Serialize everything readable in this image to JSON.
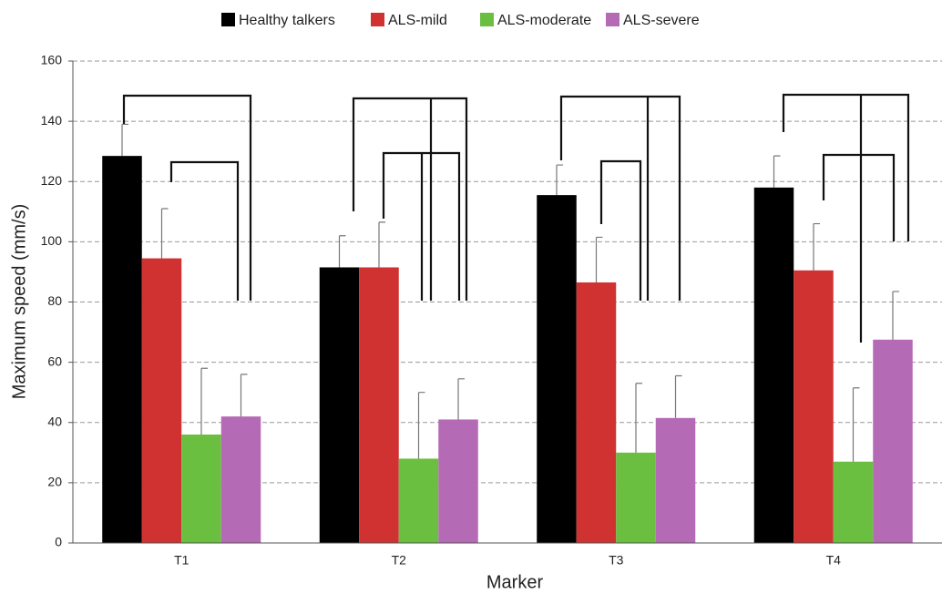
{
  "chart_data": {
    "type": "bar",
    "x_label": "Marker",
    "y_label": "Maximum speed (mm/s)",
    "categories": [
      "T1",
      "T2",
      "T3",
      "T4"
    ],
    "series": [
      {
        "name": "Healthy talkers",
        "color": "#000000",
        "values": [
          128.5,
          91.5,
          115.5,
          118
        ],
        "errors": [
          10.5,
          10.5,
          10,
          10.5
        ]
      },
      {
        "name": "ALS-mild",
        "color": "#d03232",
        "values": [
          94.5,
          91.5,
          86.5,
          90.5
        ],
        "errors": [
          16.5,
          15,
          15,
          15.5
        ]
      },
      {
        "name": "ALS-moderate",
        "color": "#6abf40",
        "values": [
          36,
          28,
          30,
          27
        ],
        "errors": [
          22,
          22,
          23,
          24.5
        ]
      },
      {
        "name": "ALS-severe",
        "color": "#b56ab5",
        "values": [
          42,
          41,
          41.5,
          67.5
        ],
        "errors": [
          14,
          13.5,
          14,
          16
        ]
      }
    ],
    "ylim": [
      0,
      160
    ],
    "yticks": [
      0,
      20,
      40,
      60,
      80,
      100,
      120,
      140,
      160
    ],
    "grid": true,
    "legend": "top"
  }
}
